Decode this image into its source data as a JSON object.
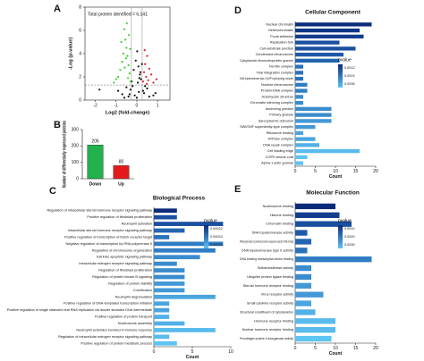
{
  "chart_data": [
    {
      "type": "scatter",
      "panel_label": "A",
      "annotation": "Total protein identified = 6,141",
      "x_label": "Log2 (fold-change)",
      "y_label": "-Log (p-value)",
      "xlim": [
        -2.5,
        1.6
      ],
      "ylim": [
        0,
        8
      ],
      "xticks": [
        -2,
        -1,
        0,
        1
      ],
      "yticks": [
        0,
        2,
        4,
        6,
        8
      ],
      "hlines": [
        1.3
      ],
      "vlines": [
        -0.26,
        0.26
      ],
      "series": [
        {
          "color": "#111111",
          "x": [
            -0.9,
            -0.7,
            -0.5,
            -0.4,
            -0.3,
            -0.2,
            -0.1,
            0,
            0.05,
            0.1,
            0.15,
            0.2,
            0.25,
            0.35,
            0.5,
            0.6,
            0.8,
            -0.15,
            -0.05,
            0.02,
            0.08,
            0.12,
            -0.25,
            0.18,
            -0.6,
            0.4,
            -1.8,
            0.9,
            -0.35,
            0.3
          ],
          "values": [
            0.8,
            0.5,
            1.1,
            0.3,
            0.9,
            1.2,
            0.4,
            0.2,
            1.5,
            0.7,
            2.2,
            1.8,
            3.1,
            0.6,
            1.0,
            0.3,
            0.4,
            2.6,
            3.4,
            4.2,
            2.9,
            1.9,
            1.6,
            2.4,
            0.2,
            1.2,
            0.9,
            0.6,
            0.5,
            0.8
          ]
        },
        {
          "color": "#39d12a",
          "x": [
            -0.3,
            -0.35,
            -0.4,
            -0.45,
            -0.5,
            -0.55,
            -0.6,
            -0.65,
            -0.7,
            -0.8,
            -0.9,
            -1.0,
            -1.1,
            -0.38,
            -0.48,
            -0.58,
            -0.32,
            -0.42,
            -0.75,
            -0.52
          ],
          "values": [
            1.6,
            2.3,
            3.0,
            3.8,
            4.5,
            5.2,
            6.1,
            4.0,
            3.3,
            2.6,
            2.0,
            1.8,
            1.5,
            5.6,
            6.6,
            2.8,
            4.4,
            1.9,
            5.0,
            3.6
          ]
        },
        {
          "color": "#e0202a",
          "x": [
            0.3,
            0.35,
            0.4,
            0.45,
            0.5,
            0.55,
            0.6,
            0.7,
            0.8,
            0.95,
            0.38,
            0.48
          ],
          "values": [
            1.6,
            2.4,
            3.1,
            2.0,
            3.8,
            1.7,
            2.7,
            2.2,
            1.5,
            1.8,
            4.3,
            1.4
          ]
        }
      ]
    },
    {
      "type": "bar",
      "panel_label": "B",
      "y_label": "Number of differentially expressed proteins",
      "categories": [
        "Down",
        "Up"
      ],
      "values": [
        206,
        80
      ],
      "colors": [
        "#22b14c",
        "#e31a1c"
      ],
      "ylim": [
        0,
        300
      ],
      "yticks": [
        0,
        100,
        200,
        300
      ]
    },
    {
      "type": "hbar",
      "panel_label": "C",
      "title": "Biological Process",
      "x_label": "Count",
      "legend_title": "pvalue",
      "legend_ticks": [
        "0.00022",
        "0.00024",
        "0.00026"
      ],
      "colorbar_colors": [
        "#0b2c7a",
        "#5ec4f2"
      ],
      "xlim": [
        0,
        10
      ],
      "xticks": [
        0,
        5,
        10
      ],
      "categories": [
        "Regulation of intracellular steroid hormone receptor signaling pathway",
        "Positive regulation of fibroblast proliferation",
        "Neutrophil activation",
        "Intracellular steroid hormone receptor signaling pathway",
        "Positive regulation of transcription of Notch receptor target",
        "Negative regulation of transcription by RNA polymerase II",
        "Regulation of chromosome organization",
        "Extrinsic apoptotic signaling pathway",
        "Intracellular estrogen receptor signaling pathway",
        "Regulation of fibroblast proliferation",
        "Regulation of protein kinase B signaling",
        "Regulation of protein stability",
        "Cornification",
        "Neutrophil degranulation",
        "Positive regulation of DNA-templated transcription initiation",
        "Positive regulation of single stranded viral RNA replication via double stranded DNA intermediate",
        "Positive regulation of protein transport",
        "Nucleosome assembly",
        "Neutrophil activation involved in immune response",
        "Regulation of intracellular estrogen receptor signaling pathway",
        "Positive regulation of protein metabolic process"
      ],
      "values": [
        3,
        3,
        9,
        4,
        2,
        9,
        8,
        6,
        3,
        4,
        4,
        4,
        4,
        8,
        2,
        2,
        2,
        4,
        8,
        2,
        3
      ],
      "colors": [
        "#0b2c7a",
        "#1a4fa0",
        "#1a4fa0",
        "#2464b0",
        "#2a72bb",
        "#2f7ec4",
        "#2f7ec4",
        "#3a8ccd",
        "#3a8ccd",
        "#3a8ccd",
        "#3a8ccd",
        "#4399d6",
        "#4399d6",
        "#4aa5de",
        "#4aa5de",
        "#4aa5de",
        "#52b0e6",
        "#52b0e6",
        "#58bbec",
        "#58bbec",
        "#5ec4f2"
      ]
    },
    {
      "type": "hbar",
      "panel_label": "D",
      "title": "Cellular Component",
      "x_label": "Count",
      "legend_title": "pvalue",
      "legend_ticks": [
        "0.0012",
        "0.0024",
        "0.0036"
      ],
      "colorbar_colors": [
        "#0b2c7a",
        "#5ec4f2"
      ],
      "xlim": [
        0,
        20
      ],
      "xticks": [
        0,
        5,
        10,
        15,
        20
      ],
      "categories": [
        "Nuclear chromatin",
        "Heterochromatin",
        "Focal adhesion",
        "Replication fork",
        "Cell-substrate junction",
        "Condensed chromosome",
        "Cytoplasmic ribonucleoprotein granule",
        "Ferritin complex",
        "Viral integration complex",
        "DNA topoisomerase type II (ATP-hydrolyzing) complex",
        "Nuclear chromosome",
        "Protein-DNA complex",
        "Actomyosin structure",
        "Chromatin silencing complex",
        "Anchoring junction",
        "Primary granule",
        "Sarcoplasmic reticulum",
        "SWI/SNF superfamily-type complex",
        "Ribosome binding",
        "ATPase complex",
        "DNA repair complex",
        "Cell leading edge",
        "COPII vesicle coat",
        "Alpha-1 actin granule"
      ],
      "values": [
        19,
        16,
        17,
        11,
        15,
        12,
        11,
        2,
        2,
        2,
        3,
        3,
        2,
        2,
        9,
        9,
        9,
        5,
        2,
        5,
        6,
        16,
        3,
        2
      ],
      "colors": [
        "#0b2c7a",
        "#0f3584",
        "#143d8e",
        "#1a4fa0",
        "#1a4fa0",
        "#2058a8",
        "#2464b0",
        "#2a72bb",
        "#2a72bb",
        "#2a72bb",
        "#2f7ec4",
        "#2f7ec4",
        "#3a8ccd",
        "#3a8ccd",
        "#3a8ccd",
        "#3a8ccd",
        "#4399d6",
        "#4399d6",
        "#4aa5de",
        "#4aa5de",
        "#52b0e6",
        "#58bbec",
        "#5ec4f2",
        "#5ec4f2"
      ]
    },
    {
      "type": "hbar",
      "panel_label": "E",
      "title": "Molecular Function",
      "x_label": "Count",
      "legend_title": "pvalue",
      "legend_ticks": [
        "0.0010",
        "0.0020",
        "0.0030"
      ],
      "colorbar_colors": [
        "#0b2c7a",
        "#5ec4f2"
      ],
      "xlim": [
        0,
        20
      ],
      "xticks": [
        0,
        5,
        10,
        15,
        20
      ],
      "categories": [
        "Nucleosome binding",
        "Histone binding",
        "Chromatin binding",
        "DNA topoisomerase activity",
        "RNA polymerase II proximal promoter sequence-specific DNA binding",
        "DNA topoisomerase type II activity",
        "DNA binding transcription factor binding",
        "Sulfotransferase activity",
        "Ubiquitin protein ligase binding",
        "Steroid hormone receptor binding",
        "Virus receptor activity",
        "Small cytokine receptor activity",
        "Structural constituent of cytoskeleton",
        "Hormone receptor binding",
        "Nuclear hormone receptor binding",
        "Procollagen-proline 4-dioxygenase activity"
      ],
      "values": [
        10,
        11,
        14,
        3,
        4,
        3,
        19,
        4,
        4,
        4,
        7,
        4,
        5,
        10,
        10,
        9
      ],
      "colors": [
        "#0b2c7a",
        "#143d8e",
        "#1a4fa0",
        "#2058a8",
        "#2464b0",
        "#2a72bb",
        "#2f7ec4",
        "#3a8ccd",
        "#3a8ccd",
        "#4399d6",
        "#4399d6",
        "#4aa5de",
        "#52b0e6",
        "#58bbec",
        "#58bbec",
        "#5ec4f2"
      ]
    }
  ]
}
